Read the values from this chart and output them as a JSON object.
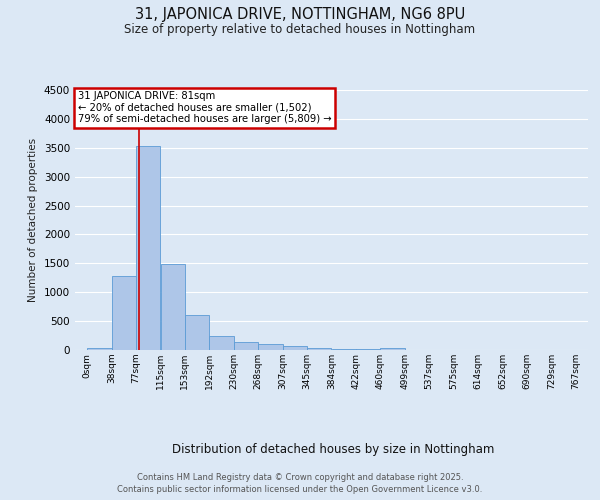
{
  "title1": "31, JAPONICA DRIVE, NOTTINGHAM, NG6 8PU",
  "title2": "Size of property relative to detached houses in Nottingham",
  "xlabel": "Distribution of detached houses by size in Nottingham",
  "ylabel": "Number of detached properties",
  "footer1": "Contains HM Land Registry data © Crown copyright and database right 2025.",
  "footer2": "Contains public sector information licensed under the Open Government Licence v3.0.",
  "bin_labels": [
    "0sqm",
    "38sqm",
    "77sqm",
    "115sqm",
    "153sqm",
    "192sqm",
    "230sqm",
    "268sqm",
    "307sqm",
    "345sqm",
    "384sqm",
    "422sqm",
    "460sqm",
    "499sqm",
    "537sqm",
    "575sqm",
    "614sqm",
    "652sqm",
    "690sqm",
    "729sqm",
    "767sqm"
  ],
  "bar_values": [
    30,
    1280,
    3530,
    1490,
    600,
    250,
    130,
    110,
    75,
    30,
    20,
    20,
    40,
    0,
    0,
    0,
    0,
    0,
    0,
    0
  ],
  "bar_color": "#aec6e8",
  "bar_edge_color": "#5b9bd5",
  "property_line_x": 81,
  "annotation_text_line1": "31 JAPONICA DRIVE: 81sqm",
  "annotation_text_line2": "← 20% of detached houses are smaller (1,502)",
  "annotation_text_line3": "79% of semi-detached houses are larger (5,809) →",
  "annotation_box_color": "#cc0000",
  "background_color": "#dce8f5",
  "plot_bg_color": "#dce8f5",
  "grid_color": "#ffffff",
  "ylim": [
    0,
    4500
  ],
  "bin_width": 38
}
